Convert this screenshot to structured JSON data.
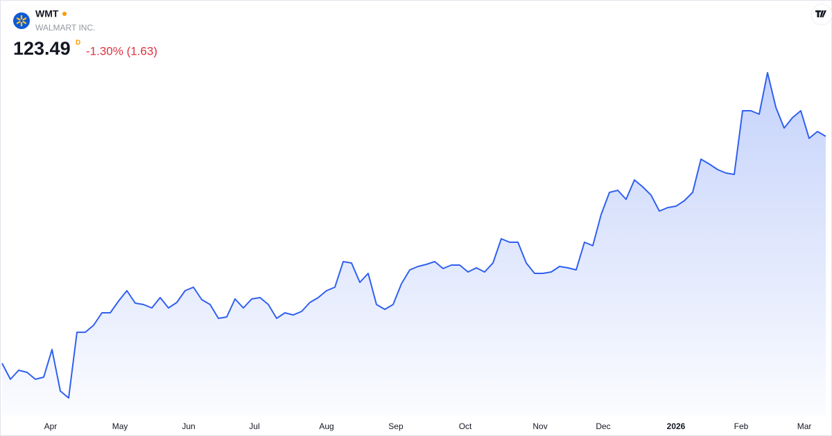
{
  "header": {
    "symbol": "WMT",
    "name": "WALMART INC.",
    "price": "123.49",
    "interval": "D",
    "change": "-1.30% (1.63)"
  },
  "chart_data": {
    "type": "area",
    "color": "#2f5ff0",
    "values": [
      85.97,
      83.34,
      84.82,
      84.48,
      83.34,
      83.68,
      88.25,
      81.39,
      80.25,
      91.11,
      91.11,
      92.26,
      94.32,
      94.32,
      96.26,
      97.98,
      95.92,
      95.69,
      95.12,
      96.83,
      95.12,
      96.03,
      97.98,
      98.55,
      96.49,
      95.69,
      93.4,
      93.63,
      96.61,
      95.12,
      96.61,
      96.83,
      95.69,
      93.4,
      94.32,
      93.97,
      94.55,
      96.03,
      96.83,
      97.98,
      98.55,
      102.78,
      102.55,
      99.35,
      100.84,
      95.69,
      94.89,
      95.69,
      99.12,
      101.41,
      101.98,
      102.33,
      102.78,
      101.64,
      102.21,
      102.21,
      101.07,
      101.75,
      101.07,
      102.55,
      106.56,
      105.99,
      105.99,
      102.55,
      100.84,
      100.84,
      101.07,
      101.98,
      101.75,
      101.41,
      105.99,
      105.41,
      110.56,
      114.22,
      114.57,
      113.08,
      116.28,
      115.14,
      113.77,
      111.13,
      111.71,
      111.94,
      112.85,
      114.22,
      119.71,
      118.91,
      118.0,
      117.43,
      117.2,
      127.72,
      127.72,
      127.15,
      134.01,
      128.29,
      124.86,
      126.58,
      127.72,
      123.15,
      124.29,
      123.49
    ],
    "xticks": [
      {
        "value": 5.83,
        "label": "Apr"
      },
      {
        "value": 14.17,
        "label": "May"
      },
      {
        "value": 22.42,
        "label": "Jun"
      },
      {
        "value": 30.33,
        "label": "Jul"
      },
      {
        "value": 39,
        "label": "Aug"
      },
      {
        "value": 47.33,
        "label": "Sep"
      },
      {
        "value": 55.67,
        "label": "Oct"
      },
      {
        "value": 64.67,
        "label": "Nov"
      },
      {
        "value": 72.25,
        "label": "Dec"
      },
      {
        "value": 81,
        "label": "2026"
      },
      {
        "value": 88.83,
        "label": "Feb"
      },
      {
        "value": 96.42,
        "label": "Mar"
      }
    ]
  }
}
